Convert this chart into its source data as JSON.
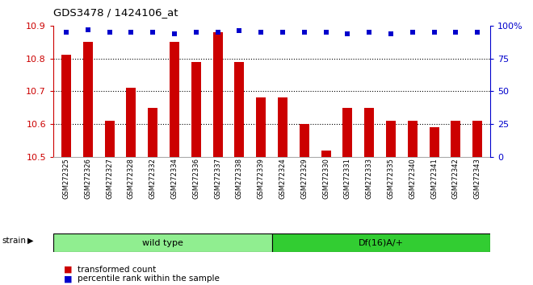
{
  "title": "GDS3478 / 1424106_at",
  "samples": [
    "GSM272325",
    "GSM272326",
    "GSM272327",
    "GSM272328",
    "GSM272332",
    "GSM272334",
    "GSM272336",
    "GSM272337",
    "GSM272338",
    "GSM272339",
    "GSM272324",
    "GSM272329",
    "GSM272330",
    "GSM272331",
    "GSM272333",
    "GSM272335",
    "GSM272340",
    "GSM272341",
    "GSM272342",
    "GSM272343"
  ],
  "bar_values": [
    10.81,
    10.85,
    10.61,
    10.71,
    10.65,
    10.85,
    10.79,
    10.88,
    10.79,
    10.68,
    10.68,
    10.6,
    10.52,
    10.65,
    10.65,
    10.61,
    10.61,
    10.59,
    10.61,
    10.61
  ],
  "percentile_values": [
    95,
    97,
    95,
    95,
    95,
    94,
    95,
    95,
    96,
    95,
    95,
    95,
    95,
    94,
    95,
    94,
    95,
    95,
    95,
    95
  ],
  "ymin": 10.5,
  "ymax": 10.9,
  "y2min": 0,
  "y2max": 100,
  "bar_color": "#cc0000",
  "dot_color": "#0000cc",
  "background_color": "#ffffff",
  "wild_type_count": 10,
  "group1_label": "wild type",
  "group2_label": "Df(16)A/+",
  "group1_color": "#90ee90",
  "group2_color": "#32cd32",
  "strain_label": "strain",
  "legend_red": "transformed count",
  "legend_blue": "percentile rank within the sample",
  "red_color": "#cc0000",
  "blue_color": "#0000cc",
  "dotted_lines": [
    10.6,
    10.7,
    10.8
  ]
}
